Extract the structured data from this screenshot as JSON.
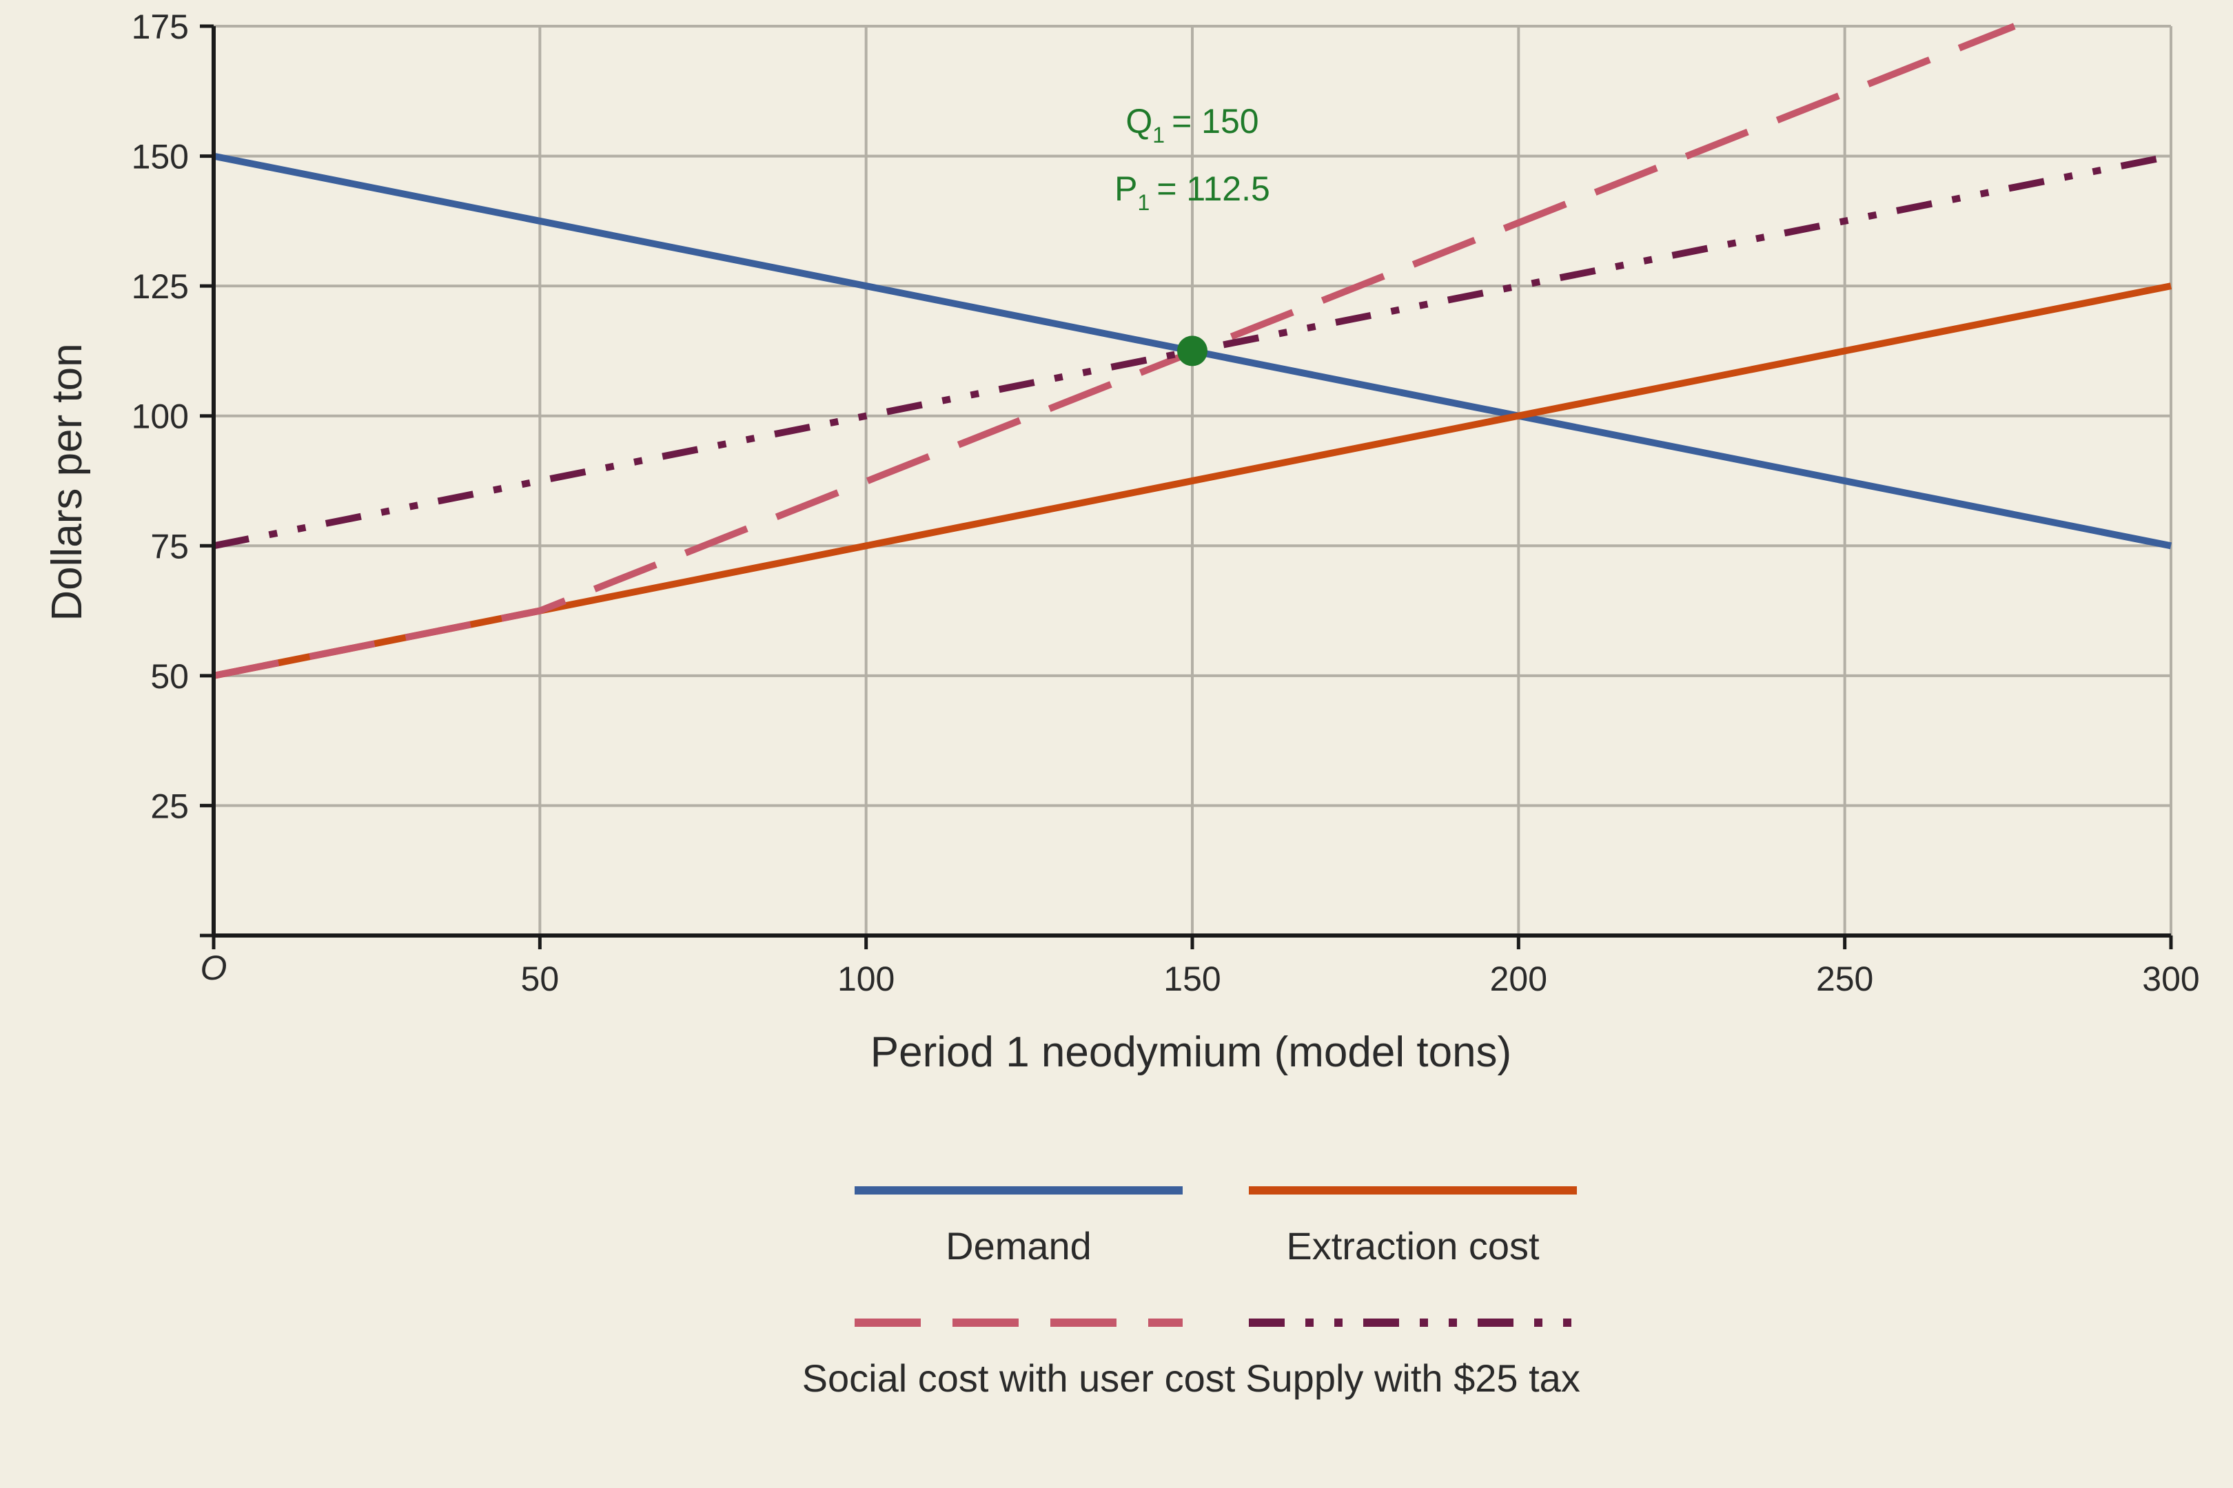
{
  "chart_data": {
    "type": "line",
    "xlabel": "Period 1 neodymium (model tons)",
    "ylabel": "Dollars per ton",
    "origin_label": "O",
    "xlim": [
      0,
      300
    ],
    "ylim": [
      0,
      175
    ],
    "xticks": [
      50,
      100,
      150,
      200,
      250,
      300
    ],
    "yticks": [
      25,
      50,
      75,
      100,
      125,
      150,
      175
    ],
    "grid": true,
    "legend_position": "bottom",
    "series": [
      {
        "name": "Demand",
        "color": "#3b5f9b",
        "style": "solid",
        "x": [
          0,
          300
        ],
        "y": [
          150,
          75
        ]
      },
      {
        "name": "Extraction cost",
        "color": "#c94a0f",
        "style": "solid",
        "x": [
          0,
          300
        ],
        "y": [
          50,
          125
        ]
      },
      {
        "name": "Social cost with user cost",
        "color": "#c5576a",
        "style": "dashed",
        "x": [
          0,
          50,
          276
        ],
        "y": [
          50,
          62.5,
          175
        ]
      },
      {
        "name": "Supply with $25 tax",
        "color": "#6b1a45",
        "style": "dashdotdot",
        "x": [
          0,
          300
        ],
        "y": [
          75,
          150
        ]
      }
    ],
    "equilibrium": {
      "x": 150,
      "y": 112.5,
      "color": "#1f7a2a",
      "q_prefix": "Q",
      "q_sub": "1",
      "q_value": "= 150",
      "p_prefix": "P",
      "p_sub": "1",
      "p_value": "= 112.5"
    }
  }
}
